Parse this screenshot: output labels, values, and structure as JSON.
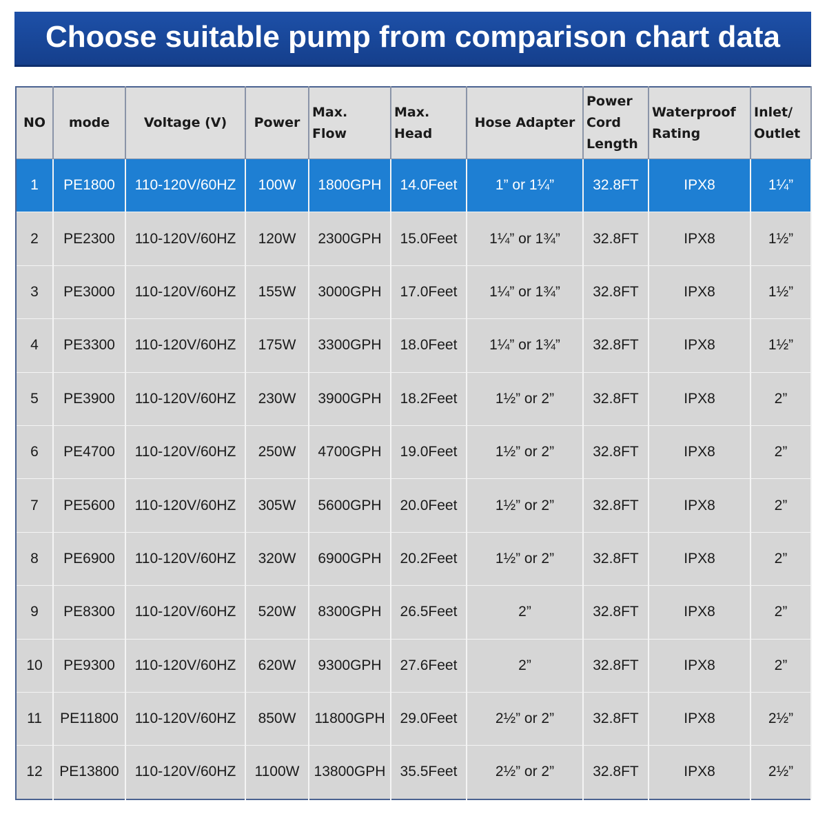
{
  "header": {
    "title": "Choose suitable pump from comparison chart data"
  },
  "table": {
    "columns": [
      "NO",
      "mode",
      "Voltage (V)",
      "Power",
      "Max.\nFlow",
      "Max.\nHead",
      "Hose Adapter",
      "Power\nCord\nLength",
      "Waterproof\nRating",
      "Inlet/\nOutlet"
    ],
    "rows": [
      [
        "1",
        "PE1800",
        "110-120V/60HZ",
        "100W",
        "1800GPH",
        "14.0Feet",
        "1” or 1¼”",
        "32.8FT",
        "IPX8",
        "1¼”"
      ],
      [
        "2",
        "PE2300",
        "110-120V/60HZ",
        "120W",
        "2300GPH",
        "15.0Feet",
        "1¼” or 1¾”",
        "32.8FT",
        "IPX8",
        "1½”"
      ],
      [
        "3",
        "PE3000",
        "110-120V/60HZ",
        "155W",
        "3000GPH",
        "17.0Feet",
        "1¼” or 1¾”",
        "32.8FT",
        "IPX8",
        "1½”"
      ],
      [
        "4",
        "PE3300",
        "110-120V/60HZ",
        "175W",
        "3300GPH",
        "18.0Feet",
        "1¼” or 1¾”",
        "32.8FT",
        "IPX8",
        "1½”"
      ],
      [
        "5",
        "PE3900",
        "110-120V/60HZ",
        "230W",
        "3900GPH",
        "18.2Feet",
        "1½” or 2”",
        "32.8FT",
        "IPX8",
        "2”"
      ],
      [
        "6",
        "PE4700",
        "110-120V/60HZ",
        "250W",
        "4700GPH",
        "19.0Feet",
        "1½” or 2”",
        "32.8FT",
        "IPX8",
        "2”"
      ],
      [
        "7",
        "PE5600",
        "110-120V/60HZ",
        "305W",
        "5600GPH",
        "20.0Feet",
        "1½” or 2”",
        "32.8FT",
        "IPX8",
        "2”"
      ],
      [
        "8",
        "PE6900",
        "110-120V/60HZ",
        "320W",
        "6900GPH",
        "20.2Feet",
        "1½” or 2”",
        "32.8FT",
        "IPX8",
        "2”"
      ],
      [
        "9",
        "PE8300",
        "110-120V/60HZ",
        "520W",
        "8300GPH",
        "26.5Feet",
        "2”",
        "32.8FT",
        "IPX8",
        "2”"
      ],
      [
        "10",
        "PE9300",
        "110-120V/60HZ",
        "620W",
        "9300GPH",
        "27.6Feet",
        "2”",
        "32.8FT",
        "IPX8",
        "2”"
      ],
      [
        "11",
        "PE11800",
        "110-120V/60HZ",
        "850W",
        "11800GPH",
        "29.0Feet",
        "2½” or 2”",
        "32.8FT",
        "IPX8",
        "2½”"
      ],
      [
        "12",
        "PE13800",
        "110-120V/60HZ",
        "1100W",
        "13800GPH",
        "35.5Feet",
        "2½” or 2”",
        "32.8FT",
        "IPX8",
        "2½”"
      ]
    ]
  }
}
